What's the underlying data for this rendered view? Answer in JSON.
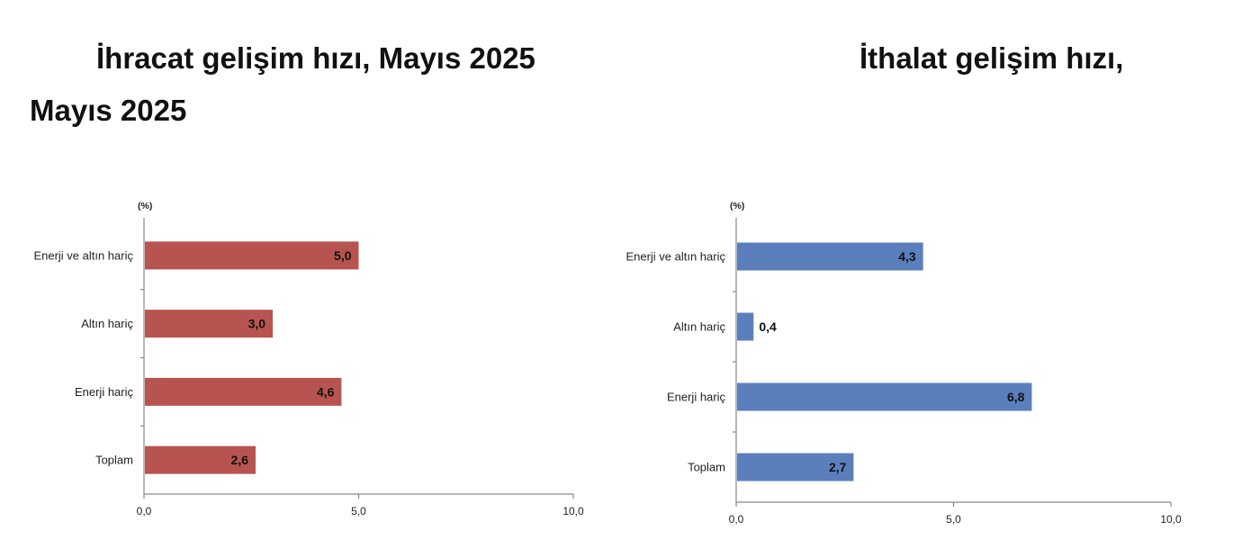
{
  "titles": {
    "line1": "İhracat gelişim hızı, Mayıs 2025",
    "line2": "İthalat gelişim hızı,",
    "line3": "Mayıs 2025"
  },
  "chart_data": [
    {
      "type": "bar",
      "orientation": "horizontal",
      "unit": "(%)",
      "categories": [
        "Enerji ve altın hariç",
        "Altın hariç",
        "Enerji hariç",
        "Toplam"
      ],
      "values": [
        5.0,
        3.0,
        4.6,
        2.6
      ],
      "value_labels": [
        "5,0",
        "3,0",
        "4,6",
        "2,6"
      ],
      "xlim": [
        0,
        10
      ],
      "x_ticks": [
        0,
        5,
        10
      ],
      "x_tick_labels": [
        "0,0",
        "5,0",
        "10,0"
      ],
      "color": "#b85450",
      "grid": false
    },
    {
      "type": "bar",
      "orientation": "horizontal",
      "unit": "(%)",
      "categories": [
        "Enerji ve altın hariç",
        "Altın hariç",
        "Enerji hariç",
        "Toplam"
      ],
      "values": [
        4.3,
        0.4,
        6.8,
        2.7
      ],
      "value_labels": [
        "4,3",
        "0,4",
        "6,8",
        "2,7"
      ],
      "xlim": [
        0,
        10
      ],
      "x_ticks": [
        0,
        5,
        10
      ],
      "x_tick_labels": [
        "0,0",
        "5,0",
        "10,0"
      ],
      "color": "#5b7fbc",
      "grid": false
    }
  ]
}
